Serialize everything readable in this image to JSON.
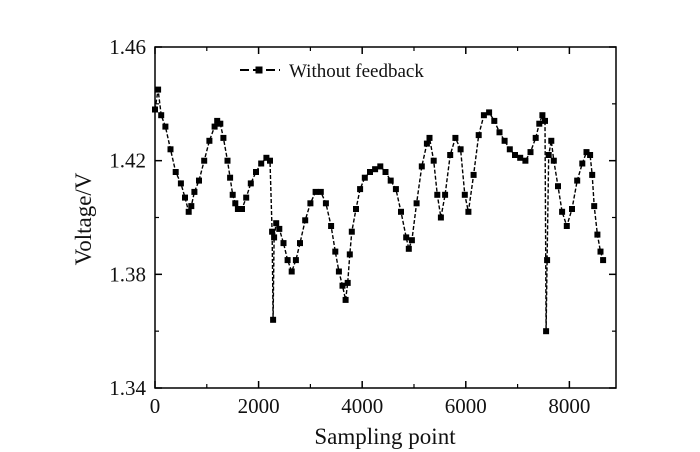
{
  "chart_data": {
    "type": "line",
    "xlabel": "Sampling point",
    "ylabel": "Voltage/V",
    "xlim": [
      0,
      8900
    ],
    "ylim": [
      1.34,
      1.46
    ],
    "x_ticks": [
      0,
      2000,
      4000,
      6000,
      8000
    ],
    "x_tick_labels": [
      "0",
      "2000",
      "4000",
      "6000",
      "8000"
    ],
    "y_ticks": [
      1.34,
      1.38,
      1.42,
      1.46
    ],
    "y_tick_labels": [
      "1.34",
      "1.38",
      "1.42",
      "1.46"
    ],
    "grid": false,
    "legend_position": "top-center",
    "series": [
      {
        "name": "Without feedback",
        "color": "#000000",
        "marker": "square",
        "line_style": "dashed",
        "x": [
          0,
          60,
          120,
          200,
          300,
          400,
          500,
          580,
          650,
          700,
          760,
          850,
          950,
          1050,
          1150,
          1200,
          1260,
          1320,
          1400,
          1450,
          1500,
          1550,
          1600,
          1680,
          1760,
          1850,
          1950,
          2050,
          2150,
          2220,
          2260,
          2280,
          2300,
          2340,
          2400,
          2480,
          2560,
          2640,
          2720,
          2800,
          2900,
          3000,
          3100,
          3200,
          3300,
          3400,
          3480,
          3550,
          3620,
          3680,
          3720,
          3760,
          3800,
          3880,
          3960,
          4050,
          4150,
          4250,
          4350,
          4450,
          4550,
          4650,
          4750,
          4850,
          4900,
          4960,
          5050,
          5150,
          5250,
          5300,
          5380,
          5450,
          5520,
          5600,
          5700,
          5800,
          5900,
          5980,
          6050,
          6150,
          6250,
          6350,
          6450,
          6550,
          6650,
          6750,
          6850,
          6950,
          7050,
          7150,
          7250,
          7350,
          7420,
          7480,
          7530,
          7550,
          7570,
          7600,
          7650,
          7700,
          7780,
          7860,
          7950,
          8050,
          8150,
          8250,
          8330,
          8400,
          8440,
          8480,
          8540,
          8600,
          8650
        ],
        "y": [
          1.438,
          1.445,
          1.436,
          1.432,
          1.424,
          1.416,
          1.412,
          1.407,
          1.402,
          1.404,
          1.409,
          1.413,
          1.42,
          1.427,
          1.432,
          1.434,
          1.433,
          1.428,
          1.42,
          1.414,
          1.408,
          1.405,
          1.403,
          1.403,
          1.407,
          1.412,
          1.416,
          1.419,
          1.421,
          1.42,
          1.395,
          1.364,
          1.393,
          1.398,
          1.396,
          1.391,
          1.385,
          1.381,
          1.385,
          1.391,
          1.399,
          1.405,
          1.409,
          1.409,
          1.405,
          1.397,
          1.388,
          1.381,
          1.376,
          1.371,
          1.377,
          1.387,
          1.395,
          1.403,
          1.41,
          1.414,
          1.416,
          1.417,
          1.418,
          1.416,
          1.413,
          1.41,
          1.402,
          1.393,
          1.389,
          1.392,
          1.405,
          1.418,
          1.426,
          1.428,
          1.42,
          1.408,
          1.4,
          1.408,
          1.422,
          1.428,
          1.424,
          1.408,
          1.402,
          1.415,
          1.429,
          1.436,
          1.437,
          1.434,
          1.43,
          1.427,
          1.424,
          1.422,
          1.421,
          1.42,
          1.423,
          1.428,
          1.433,
          1.436,
          1.434,
          1.36,
          1.385,
          1.422,
          1.427,
          1.42,
          1.411,
          1.402,
          1.397,
          1.403,
          1.413,
          1.419,
          1.423,
          1.422,
          1.415,
          1.404,
          1.394,
          1.388,
          1.385
        ]
      }
    ]
  }
}
